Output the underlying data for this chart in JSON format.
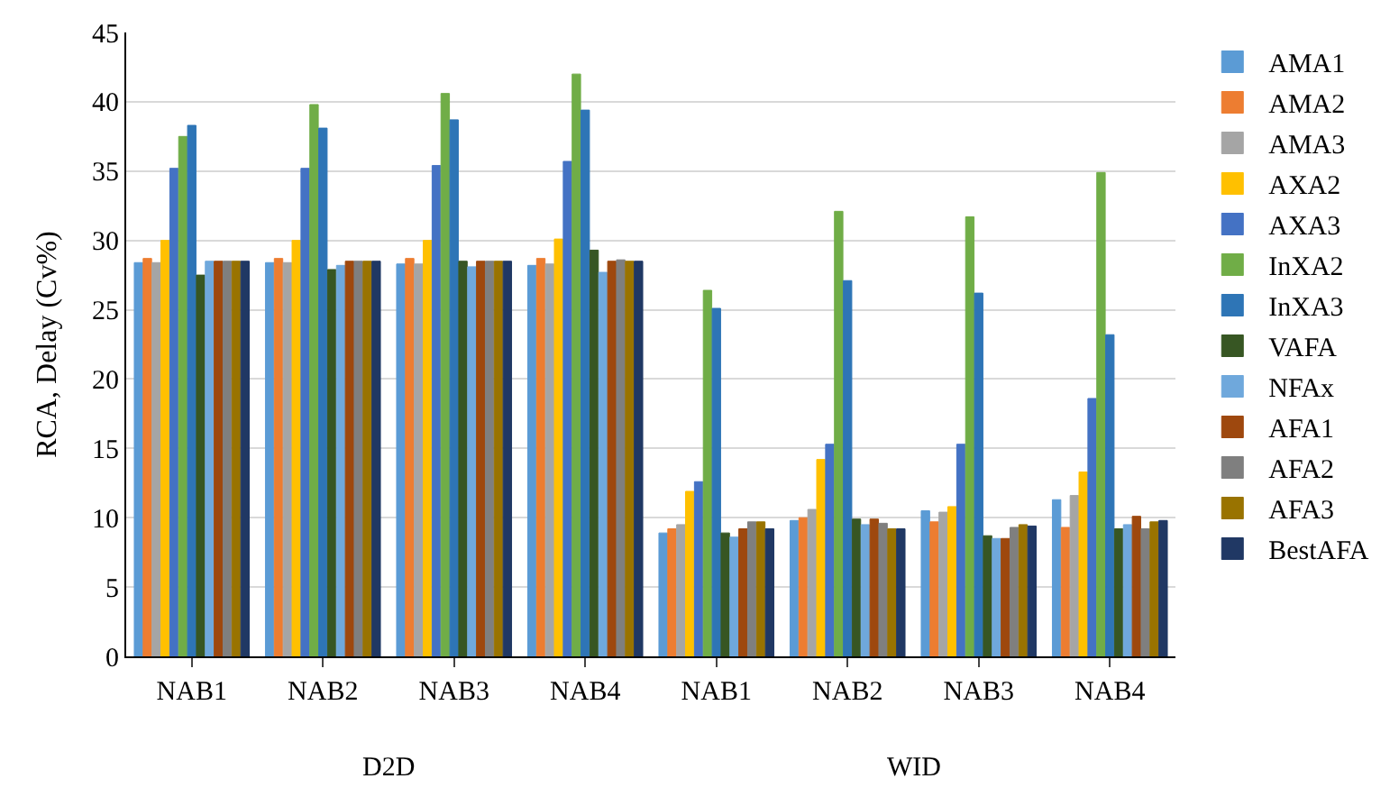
{
  "chart_data": {
    "type": "bar",
    "ylabel": "RCA, Delay (Cv%)",
    "categories": [
      "NAB1",
      "NAB2",
      "NAB3",
      "NAB4",
      "NAB1",
      "NAB2",
      "NAB3",
      "NAB4"
    ],
    "annotations": [
      "D2D",
      "WID"
    ],
    "series": [
      {
        "name": "AMA1",
        "color": "#5b9bd5",
        "values": [
          28.4,
          28.4,
          28.3,
          28.2,
          8.9,
          9.8,
          10.5,
          11.3
        ]
      },
      {
        "name": "AMA2",
        "color": "#ed7d31",
        "values": [
          28.7,
          28.7,
          28.7,
          28.7,
          9.2,
          10.0,
          9.7,
          9.3
        ]
      },
      {
        "name": "AMA3",
        "color": "#a5a5a5",
        "values": [
          28.4,
          28.4,
          28.3,
          28.3,
          9.5,
          10.6,
          10.4,
          11.6
        ]
      },
      {
        "name": "AXA2",
        "color": "#ffc000",
        "values": [
          30.0,
          30.0,
          30.0,
          30.1,
          11.9,
          14.2,
          10.8,
          13.3
        ]
      },
      {
        "name": "AXA3",
        "color": "#4472c4",
        "values": [
          35.2,
          35.2,
          35.4,
          35.7,
          12.6,
          15.3,
          15.3,
          18.6
        ]
      },
      {
        "name": "InXA2",
        "color": "#70ad47",
        "values": [
          37.5,
          39.8,
          40.6,
          42.0,
          26.4,
          32.1,
          31.7,
          34.9
        ]
      },
      {
        "name": "InXA3",
        "color": "#2e75b6",
        "values": [
          38.3,
          38.1,
          38.7,
          39.4,
          25.1,
          27.1,
          26.2,
          23.2
        ]
      },
      {
        "name": "VAFA",
        "color": "#375623",
        "values": [
          27.5,
          27.9,
          28.5,
          29.3,
          8.9,
          9.9,
          8.7,
          9.2
        ]
      },
      {
        "name": "NFAx",
        "color": "#6fa8dc",
        "values": [
          28.5,
          28.2,
          28.1,
          27.7,
          8.6,
          9.5,
          8.5,
          9.5
        ]
      },
      {
        "name": "AFA1",
        "color": "#9e480e",
        "values": [
          28.5,
          28.5,
          28.5,
          28.5,
          9.2,
          9.9,
          8.5,
          10.1
        ]
      },
      {
        "name": "AFA2",
        "color": "#7f7f7f",
        "values": [
          28.5,
          28.5,
          28.5,
          28.6,
          9.7,
          9.6,
          9.3,
          9.2
        ]
      },
      {
        "name": "AFA3",
        "color": "#997300",
        "values": [
          28.5,
          28.5,
          28.5,
          28.5,
          9.7,
          9.2,
          9.5,
          9.7
        ]
      },
      {
        "name": "BestAFA",
        "color": "#203864",
        "values": [
          28.5,
          28.5,
          28.5,
          28.5,
          9.2,
          9.2,
          9.4,
          9.8
        ]
      }
    ],
    "ylim": [
      0,
      45
    ],
    "yticks": [
      0,
      5,
      10,
      15,
      20,
      25,
      30,
      35,
      40,
      45
    ],
    "grid": "y",
    "legend": "right"
  }
}
